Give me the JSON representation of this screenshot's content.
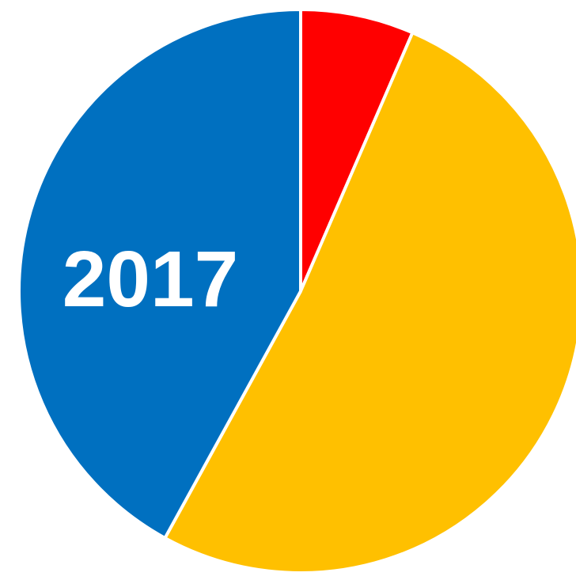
{
  "chart_data": {
    "type": "pie",
    "label": "2017",
    "slices": [
      {
        "value": 6.5,
        "color": "#ff0000"
      },
      {
        "value": 51.5,
        "color": "#ffc000"
      },
      {
        "value": 42.0,
        "color": "#0070c0"
      }
    ]
  }
}
